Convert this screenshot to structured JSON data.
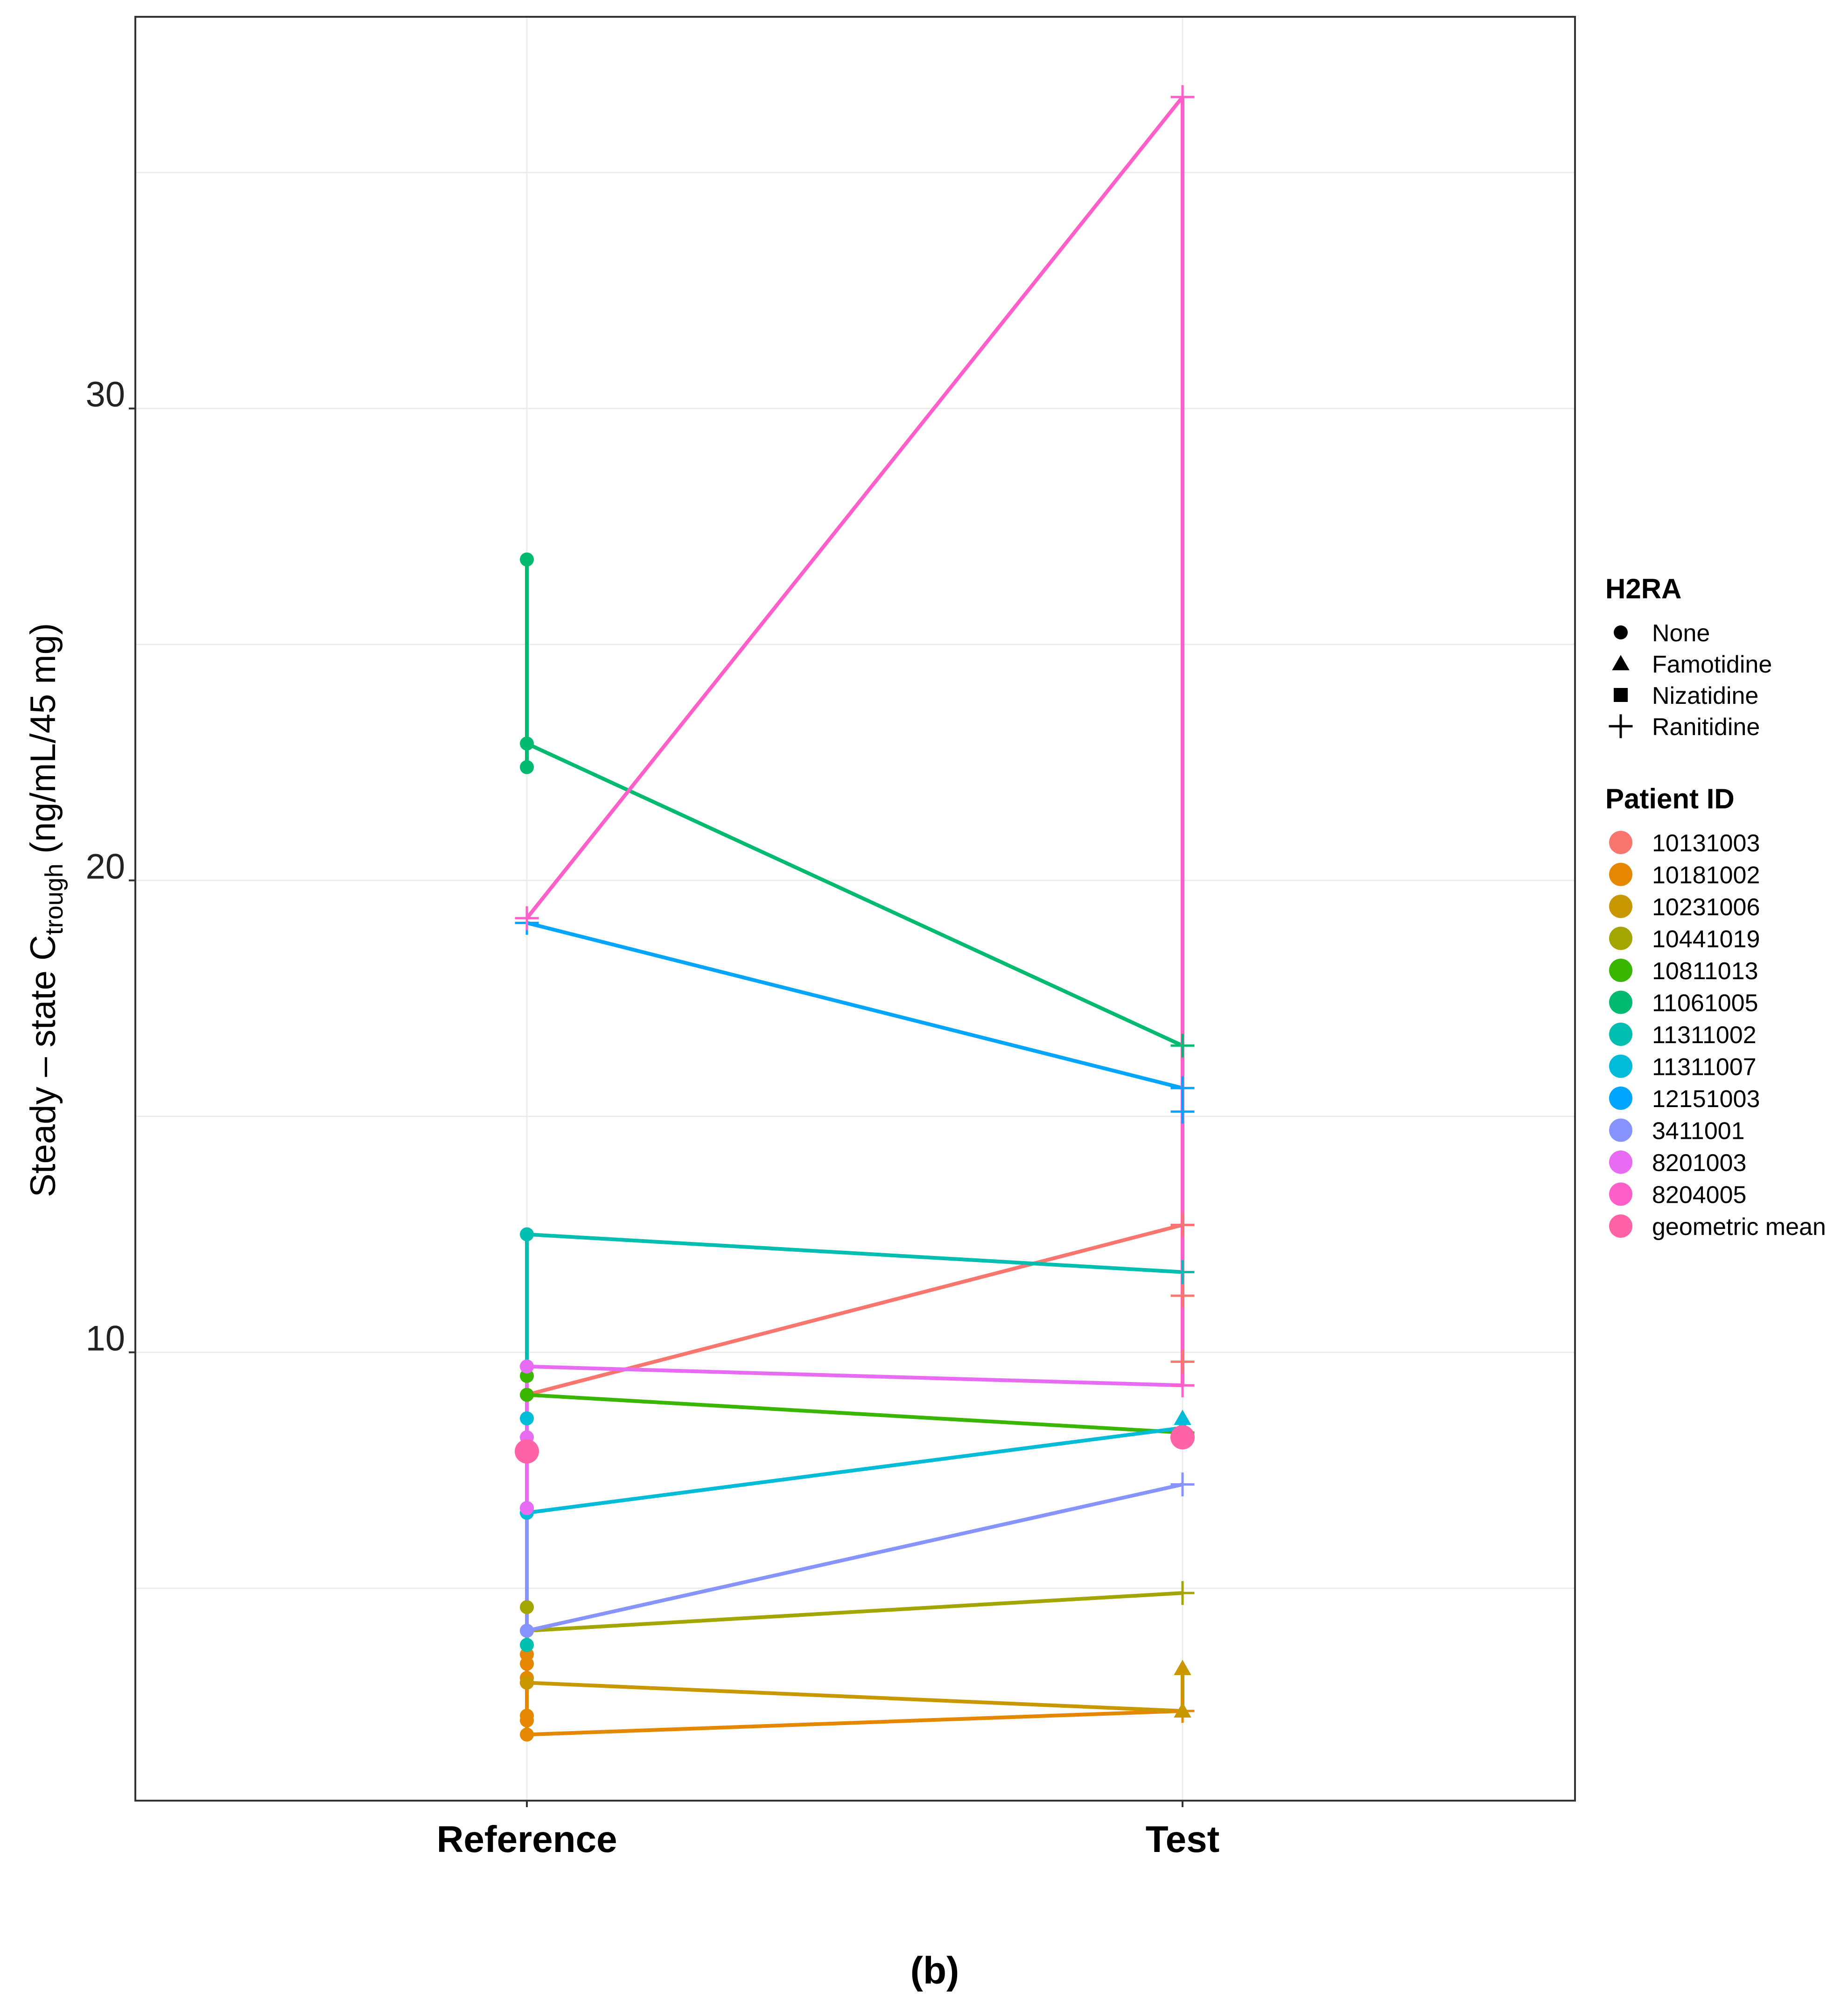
{
  "chart_data": {
    "type": "line",
    "title": "",
    "panel_label": "(b)",
    "ylabel_main": "Steady – state C",
    "ylabel_sub": "trough",
    "ylabel_units": " (ng/mL/45 mg)",
    "xlabel": "",
    "categories": [
      "Reference",
      "Test"
    ],
    "ylim": [
      0.5,
      38.3
    ],
    "yticks": [
      10,
      20,
      30
    ],
    "ytick_labels": [
      "10",
      "20",
      "30"
    ],
    "minor_gridlines": [
      5,
      15,
      25,
      35
    ],
    "grid": true,
    "legend_position": "right",
    "shape_legend": {
      "title": "H2RA",
      "items": [
        {
          "label": "None",
          "shape": "circle"
        },
        {
          "label": "Famotidine",
          "shape": "triangle"
        },
        {
          "label": "Nizatidine",
          "shape": "square"
        },
        {
          "label": "Ranitidine",
          "shape": "plus"
        }
      ]
    },
    "color_legend": {
      "title": "Patient ID",
      "items": [
        {
          "label": "10131003",
          "color": "#F8766D"
        },
        {
          "label": "10181002",
          "color": "#E58700"
        },
        {
          "label": "10231006",
          "color": "#C99800"
        },
        {
          "label": "10441019",
          "color": "#A3A500"
        },
        {
          "label": "10811013",
          "color": "#39B600"
        },
        {
          "label": "11061005",
          "color": "#00BA70"
        },
        {
          "label": "11311002",
          "color": "#00BFB0"
        },
        {
          "label": "11311007",
          "color": "#00BCD8"
        },
        {
          "label": "12151003",
          "color": "#00A5FF"
        },
        {
          "label": "3411001",
          "color": "#8794FF"
        },
        {
          "label": "8201003",
          "color": "#E76BF3"
        },
        {
          "label": "8204005",
          "color": "#FF5FC8"
        },
        {
          "label": "geometric mean",
          "color": "#FF62A6"
        }
      ]
    },
    "series": [
      {
        "name": "10131003",
        "color": "#F8766D",
        "ref": [
          9.1
        ],
        "test": [
          12.7,
          11.2,
          9.8
        ],
        "ref_shape": "circle",
        "test_shape": "plus"
      },
      {
        "name": "10181002",
        "color": "#E58700",
        "ref": [
          1.9,
          2.2,
          2.3,
          3.0,
          3.1,
          3.4,
          3.6
        ],
        "test": [
          2.4
        ],
        "ref_shape": "circle",
        "test_shape": "plus"
      },
      {
        "name": "10231006",
        "color": "#C99800",
        "ref": [
          3.0
        ],
        "test": [
          2.4,
          3.3
        ],
        "ref_shape": "circle",
        "test_shape": "triangle"
      },
      {
        "name": "10441019",
        "color": "#A3A500",
        "ref": [
          4.1,
          4.6
        ],
        "test": [
          4.9
        ],
        "ref_shape": "circle",
        "test_shape": "plus"
      },
      {
        "name": "10811013",
        "color": "#39B600",
        "ref": [
          9.1,
          9.5
        ],
        "test": [
          8.3
        ],
        "ref_shape": "circle",
        "test_shape": "plus"
      },
      {
        "name": "11061005",
        "color": "#00BA70",
        "ref": [
          22.9,
          22.4,
          26.8
        ],
        "test": [
          16.5
        ],
        "ref_shape": "circle",
        "test_shape": "plus"
      },
      {
        "name": "11311002",
        "color": "#00BFB0",
        "ref": [
          12.5,
          3.8
        ],
        "test": [
          11.7
        ],
        "ref_shape": "circle",
        "test_shape": "plus"
      },
      {
        "name": "11311007",
        "color": "#00BCD8",
        "ref": [
          6.6,
          8.6
        ],
        "test": [
          8.4,
          8.6
        ],
        "ref_shape": "circle",
        "test_shape": "triangle"
      },
      {
        "name": "12151003",
        "color": "#00A5FF",
        "ref": [
          19.1
        ],
        "test": [
          15.6,
          15.1
        ],
        "ref_shape": "plus",
        "test_shape": "plus"
      },
      {
        "name": "3411001",
        "color": "#8794FF",
        "ref": [
          4.1,
          6.7
        ],
        "test": [
          7.2
        ],
        "ref_shape": "circle",
        "test_shape": "plus"
      },
      {
        "name": "8201003",
        "color": "#E76BF3",
        "ref": [
          9.7,
          8.2,
          6.7
        ],
        "test": [
          9.3
        ],
        "ref_shape": "circle",
        "test_shape": "plus"
      },
      {
        "name": "8204005",
        "color": "#FF5FC8",
        "ref": [
          19.2
        ],
        "test": [
          36.6,
          9.3
        ],
        "ref_shape": "plus",
        "test_shape": "plus"
      }
    ],
    "geometric_mean": {
      "name": "geometric mean",
      "color": "#FF62A6",
      "ref": 7.9,
      "test": 8.2
    }
  }
}
